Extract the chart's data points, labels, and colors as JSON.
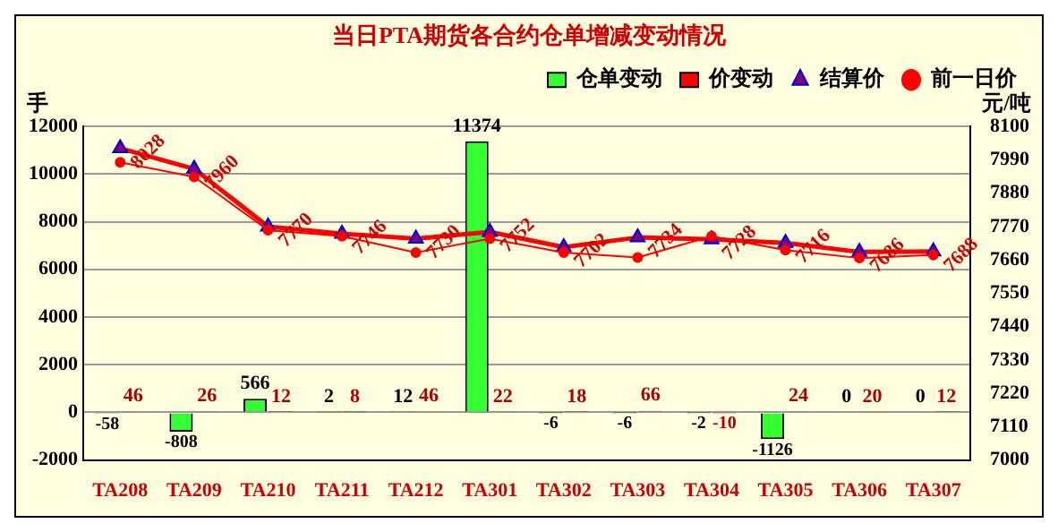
{
  "chart_data": {
    "type": "bar",
    "title": "当日PTA期货各合约仓单增减变动情况",
    "ylabel": "手",
    "y2label": "元/吨",
    "categories": [
      "TA208",
      "TA209",
      "TA210",
      "TA211",
      "TA212",
      "TA301",
      "TA302",
      "TA303",
      "TA304",
      "TA305",
      "TA306",
      "TA307"
    ],
    "series": [
      {
        "name": "仓单变动",
        "color": "#33ff33",
        "values": [
          -58,
          -808,
          566,
          2,
          12,
          11374,
          -6,
          -6,
          -2,
          -1126,
          0,
          0
        ],
        "value_labels": [
          "-58",
          "-808",
          "566",
          "2",
          "12",
          "11374",
          "-6",
          "-6",
          "-2",
          "-1126",
          "0",
          "0"
        ]
      },
      {
        "name": "价变动",
        "color": "#ff0000",
        "values": [
          46,
          26,
          12,
          8,
          46,
          22,
          18,
          66,
          -10,
          24,
          20,
          12
        ],
        "value_labels": [
          "46",
          "26",
          "12",
          "8",
          "46",
          "22",
          "18",
          "66",
          "-10",
          "24",
          "20",
          "12"
        ]
      },
      {
        "name": "结算价",
        "type": "line",
        "axis": "y2",
        "color": "#ff0000",
        "marker": "triangle",
        "values": [
          8028,
          7960,
          7770,
          7746,
          7730,
          7752,
          7702,
          7734,
          7728,
          7716,
          7686,
          7688
        ],
        "value_labels": [
          "8028",
          "7960",
          "7770",
          "7746",
          "7730",
          "7752",
          "7702",
          "7734",
          "7728",
          "7716",
          "7686",
          "7688"
        ]
      },
      {
        "name": "前一日价",
        "type": "line",
        "axis": "y2",
        "color": "#ff0000",
        "marker": "circle",
        "values": [
          7982,
          7934,
          7758,
          7738,
          7684,
          7730,
          7684,
          7668,
          7738,
          7692,
          7666,
          7676
        ]
      }
    ],
    "ylim": [
      -2000,
      12000
    ],
    "yticks": [
      -2000,
      0,
      2000,
      4000,
      6000,
      8000,
      10000,
      12000
    ],
    "y2lim": [
      7000,
      8100
    ],
    "y2ticks": [
      7000,
      7110,
      7220,
      7330,
      7440,
      7550,
      7660,
      7770,
      7880,
      7990,
      8100
    ],
    "grid": "y",
    "legend": "top right"
  }
}
